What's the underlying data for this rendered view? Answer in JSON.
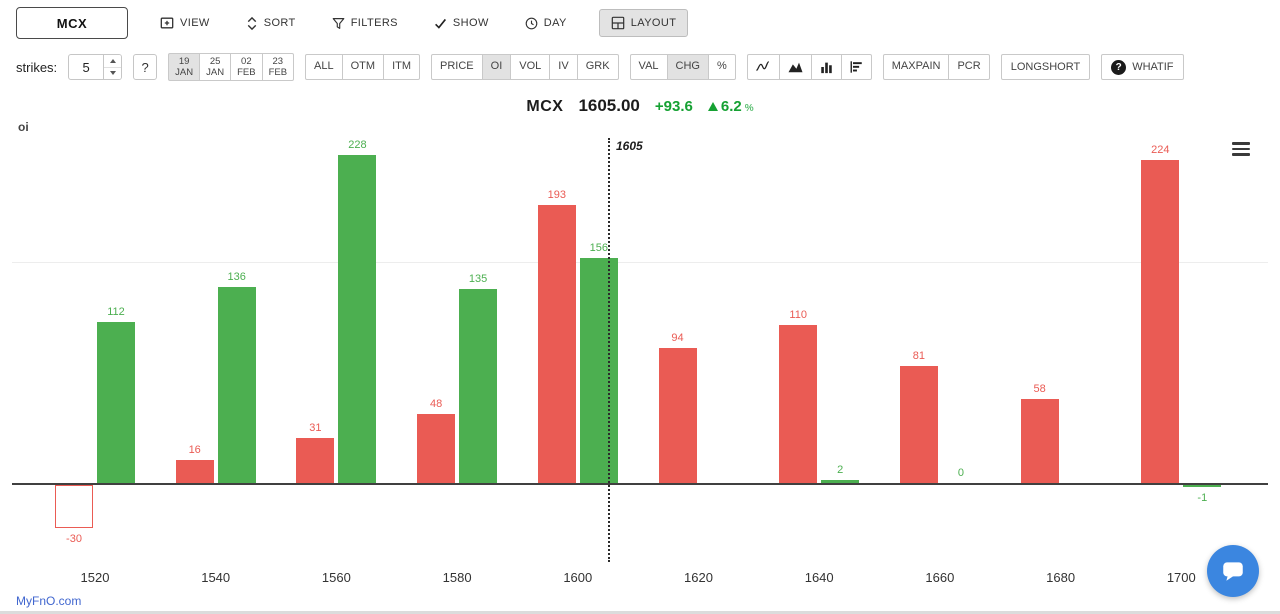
{
  "topbar": {
    "ticker": "MCX",
    "buttons": [
      {
        "id": "view",
        "label": "VIEW",
        "icon": "add-view-icon"
      },
      {
        "id": "sort",
        "label": "SORT",
        "icon": "sort-icon"
      },
      {
        "id": "filters",
        "label": "FILTERS",
        "icon": "funnel-icon"
      },
      {
        "id": "show",
        "label": "SHOW",
        "icon": "check-icon"
      },
      {
        "id": "day",
        "label": "DAY",
        "icon": "clock-icon"
      },
      {
        "id": "layout",
        "label": "LAYOUT",
        "icon": "layout-icon",
        "selected": true
      }
    ]
  },
  "controls": {
    "strikes_label": "strikes:",
    "strikes_value": "5",
    "help_label": "?",
    "expiries": [
      {
        "day": "19",
        "month": "JAN",
        "selected": true
      },
      {
        "day": "25",
        "month": "JAN"
      },
      {
        "day": "02",
        "month": "FEB"
      },
      {
        "day": "23",
        "month": "FEB"
      }
    ],
    "moneyness": [
      {
        "label": "ALL"
      },
      {
        "label": "OTM"
      },
      {
        "label": "ITM"
      }
    ],
    "metrics": [
      {
        "label": "PRICE"
      },
      {
        "label": "OI",
        "selected": true
      },
      {
        "label": "VOL"
      },
      {
        "label": "IV"
      },
      {
        "label": "GRK"
      }
    ],
    "value_modes": [
      {
        "label": "VAL"
      },
      {
        "label": "CHG",
        "selected": true
      },
      {
        "label": "%"
      }
    ],
    "chart_types": [
      {
        "icon": "line-chart-icon"
      },
      {
        "icon": "area-chart-icon"
      },
      {
        "icon": "bar-chart-icon"
      },
      {
        "icon": "sorted-bars-icon"
      }
    ],
    "analysis": [
      {
        "label": "MAXPAIN"
      },
      {
        "label": "PCR"
      }
    ],
    "longshort_label": "LONGSHORT",
    "whatif_label": "WHATIF",
    "whatif_q": "?"
  },
  "header": {
    "symbol": "MCX",
    "price": "1605.00",
    "change": "+93.6",
    "change_pct": "6.2",
    "pct_suffix": "%"
  },
  "chart_data": {
    "type": "bar",
    "corner_label": "oi",
    "categories": [
      1520,
      1540,
      1560,
      1580,
      1600,
      1620,
      1640,
      1660,
      1680,
      1700
    ],
    "series": [
      {
        "name": "red-oi-change",
        "color": "#ea5b54",
        "values": [
          -30,
          16,
          31,
          48,
          193,
          94,
          110,
          81,
          58,
          224
        ]
      },
      {
        "name": "green-oi-change",
        "color": "#4caf50",
        "values": [
          112,
          136,
          228,
          135,
          156,
          null,
          2,
          0,
          null,
          -1
        ]
      }
    ],
    "spot_line": {
      "value": 1605,
      "label": "1605"
    },
    "ylim": [
      -40,
      240
    ],
    "bar_labels": true,
    "legend": "none",
    "grid": "single-faint-horizontal"
  },
  "footer": {
    "brand": "MyFnO.com"
  }
}
